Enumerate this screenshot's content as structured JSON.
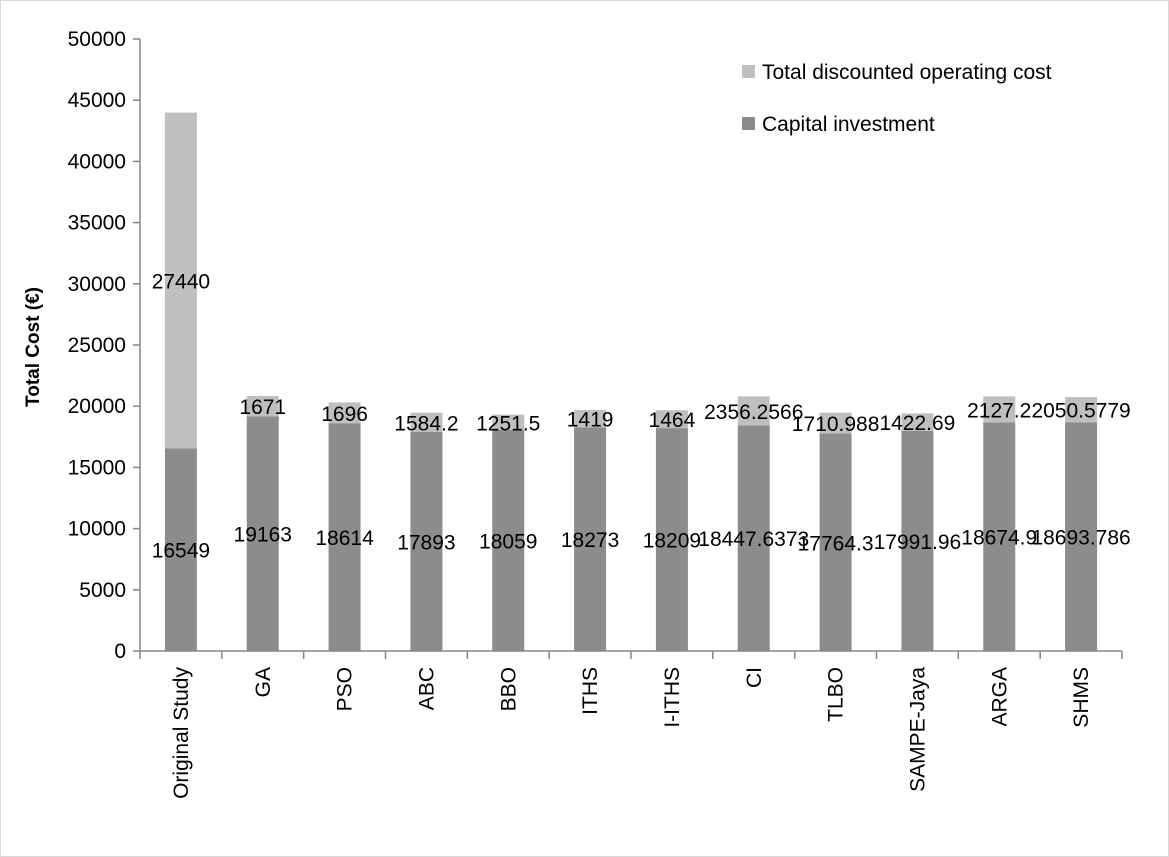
{
  "chart_data": {
    "type": "bar",
    "stacked": true,
    "categories": [
      "Original Study",
      "GA",
      "PSO",
      "ABC",
      "BBO",
      "ITHS",
      "I-ITHS",
      "CI",
      "TLBO",
      "SAMPE-Jaya",
      "ARGA",
      "SHMS"
    ],
    "series": [
      {
        "name": "Capital investment",
        "color": "#8c8c8c",
        "values": [
          16549,
          19163,
          18614,
          17893,
          18059,
          18273,
          18209,
          18447.6373,
          17764.3,
          17991.96,
          18674.9,
          18693.786
        ],
        "labels": [
          "16549",
          "19163",
          "18614",
          "17893",
          "18059",
          "18273",
          "18209",
          "18447.6373",
          "17764.3",
          "17991.96",
          "18674.9",
          "18693.786"
        ]
      },
      {
        "name": "Total discounted operating cost",
        "color": "#bfbfbf",
        "values": [
          27440,
          1671,
          1696,
          1584.2,
          1251.5,
          1419,
          1464,
          2356.2566,
          1710.988,
          1422.69,
          2127.2,
          2050.5779
        ],
        "labels": [
          "27440",
          "1671",
          "1696",
          "1584.2",
          "1251.5",
          "1419",
          "1464",
          "2356.2566",
          "1710.988",
          "1422.69",
          "2127.2",
          "2050.5779"
        ]
      }
    ],
    "ylabel": "Total Cost (€)",
    "xlabel": "",
    "title": "",
    "ylim": [
      0,
      50000
    ],
    "yticks": [
      "0",
      "5000",
      "10000",
      "15000",
      "20000",
      "25000",
      "30000",
      "35000",
      "40000",
      "45000",
      "50000"
    ],
    "grid": false,
    "legend_position": "top-right"
  }
}
